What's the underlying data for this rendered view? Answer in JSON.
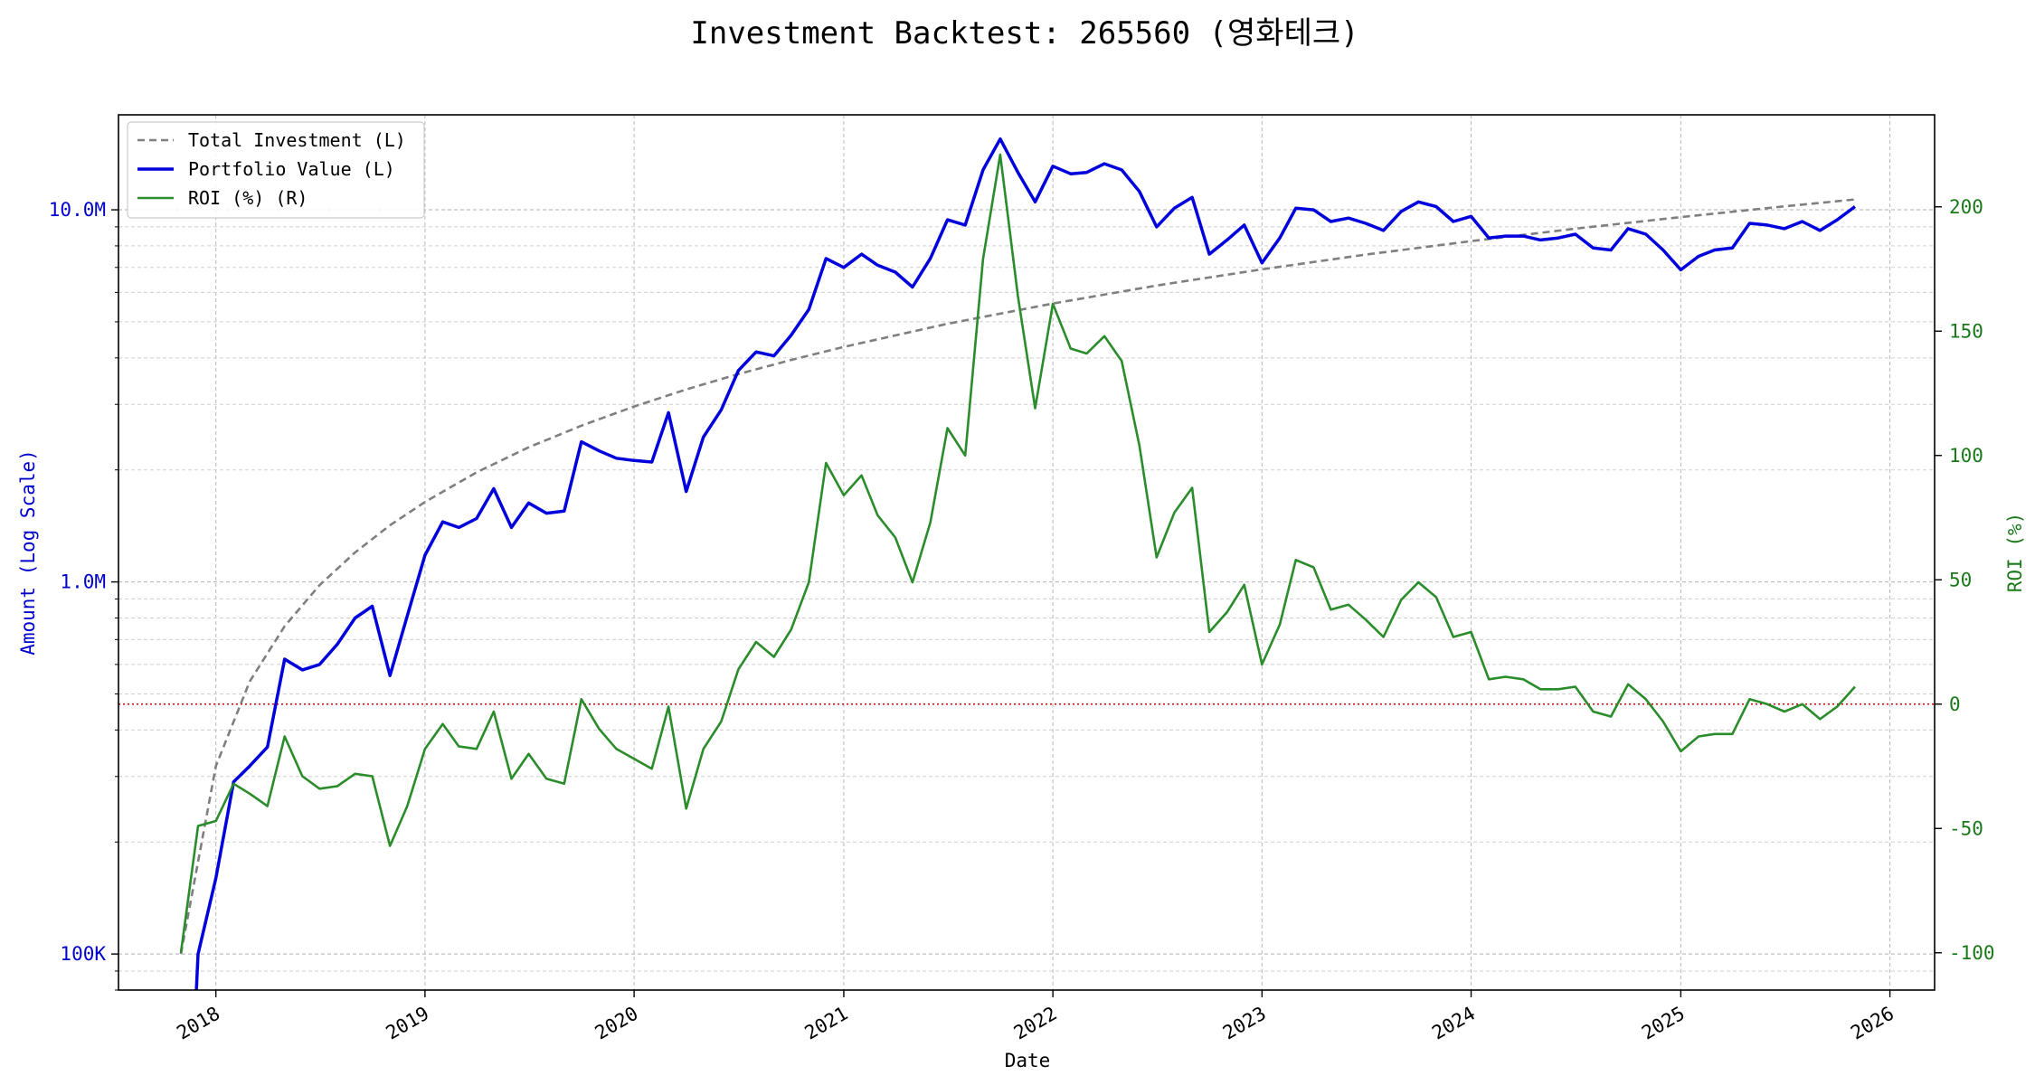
{
  "chart_data": {
    "type": "line",
    "title": "Investment Backtest: 265560 (영화테크)",
    "xlabel": "Date",
    "ylabel_left": "Amount (Log Scale)",
    "ylabel_right": "ROI (%)",
    "left_scale": "log",
    "left_ylim": [
      80000,
      18000000
    ],
    "right_ylim": [
      -115,
      237
    ],
    "x_range": [
      "2017-07-15",
      "2026-03-20"
    ],
    "x_ticks": [
      {
        "date": "2018-01-01",
        "label": "2018"
      },
      {
        "date": "2019-01-01",
        "label": "2019"
      },
      {
        "date": "2020-01-01",
        "label": "2020"
      },
      {
        "date": "2021-01-01",
        "label": "2021"
      },
      {
        "date": "2022-01-01",
        "label": "2022"
      },
      {
        "date": "2023-01-01",
        "label": "2023"
      },
      {
        "date": "2024-01-01",
        "label": "2024"
      },
      {
        "date": "2025-01-01",
        "label": "2025"
      },
      {
        "date": "2026-01-01",
        "label": "2026"
      }
    ],
    "left_ticks": [
      {
        "value": 100000,
        "label": "100K"
      },
      {
        "value": 1000000,
        "label": "1.0M"
      },
      {
        "value": 10000000,
        "label": "10.0M"
      }
    ],
    "right_ticks": [
      -100,
      -50,
      0,
      50,
      100,
      150,
      200
    ],
    "reference_line": {
      "value": 0,
      "axis": "right",
      "color": "#cc0000",
      "style": "dotted"
    },
    "grid": true,
    "legend_position": "top-left",
    "colors": {
      "investment": "#7f7f7f",
      "portfolio": "#0000dd",
      "roi": "#2a8c2a",
      "left_axis": "#0000cc",
      "right_axis": "#1a7a1a"
    },
    "series": [
      {
        "name": "Total Investment (L)",
        "axis": "left",
        "style": "dashed",
        "x": [
          "2017-11-01",
          "2018-01-01",
          "2018-03-01",
          "2018-05-01",
          "2018-07-01",
          "2018-09-01",
          "2018-11-01",
          "2019-01-01",
          "2019-04-01",
          "2019-07-01",
          "2019-10-01",
          "2020-01-01",
          "2020-04-01",
          "2020-07-01",
          "2020-10-01",
          "2021-01-01",
          "2021-07-01",
          "2022-01-01",
          "2022-07-01",
          "2023-01-01",
          "2023-07-01",
          "2024-01-01",
          "2024-07-01",
          "2025-01-01",
          "2025-07-01",
          "2025-11-01"
        ],
        "values": [
          100000,
          320000,
          540000,
          760000,
          980000,
          1200000,
          1420000,
          1640000,
          1970000,
          2300000,
          2630000,
          2960000,
          3290000,
          3620000,
          3950000,
          4280000,
          4940000,
          5600000,
          6260000,
          6920000,
          7580000,
          8240000,
          8900000,
          9560000,
          10220000,
          10660000
        ]
      },
      {
        "name": "Portfolio Value (L)",
        "axis": "left",
        "style": "solid",
        "x": [
          "2017-11-28",
          "2017-12-01",
          "2018-01-01",
          "2018-02-01",
          "2018-03-01",
          "2018-04-01",
          "2018-05-01",
          "2018-06-01",
          "2018-07-01",
          "2018-08-01",
          "2018-09-01",
          "2018-10-01",
          "2018-11-01",
          "2018-12-01",
          "2019-01-01",
          "2019-02-01",
          "2019-03-01",
          "2019-04-01",
          "2019-05-01",
          "2019-06-01",
          "2019-07-01",
          "2019-08-01",
          "2019-09-01",
          "2019-10-01",
          "2019-11-01",
          "2019-12-01",
          "2020-01-01",
          "2020-02-01",
          "2020-03-01",
          "2020-04-01",
          "2020-05-01",
          "2020-06-01",
          "2020-07-01",
          "2020-08-01",
          "2020-09-01",
          "2020-10-01",
          "2020-11-01",
          "2020-12-01",
          "2021-01-01",
          "2021-02-01",
          "2021-03-01",
          "2021-04-01",
          "2021-05-01",
          "2021-06-01",
          "2021-07-01",
          "2021-08-01",
          "2021-09-01",
          "2021-10-01",
          "2021-11-01",
          "2021-12-01",
          "2022-01-01",
          "2022-02-01",
          "2022-03-01",
          "2022-04-01",
          "2022-05-01",
          "2022-06-01",
          "2022-07-01",
          "2022-08-01",
          "2022-09-01",
          "2022-10-01",
          "2022-11-01",
          "2022-12-01",
          "2023-01-01",
          "2023-02-01",
          "2023-03-01",
          "2023-04-01",
          "2023-05-01",
          "2023-06-01",
          "2023-07-01",
          "2023-08-01",
          "2023-09-01",
          "2023-10-01",
          "2023-11-01",
          "2023-12-01",
          "2024-01-01",
          "2024-02-01",
          "2024-03-01",
          "2024-04-01",
          "2024-05-01",
          "2024-06-01",
          "2024-07-01",
          "2024-08-01",
          "2024-09-01",
          "2024-10-01",
          "2024-11-01",
          "2024-12-01",
          "2025-01-01",
          "2025-02-01",
          "2025-03-01",
          "2025-04-01",
          "2025-05-01",
          "2025-06-01",
          "2025-07-01",
          "2025-08-01",
          "2025-09-01",
          "2025-10-01",
          "2025-11-01"
        ],
        "values": [
          70000,
          100000,
          160000,
          290000,
          320000,
          360000,
          620000,
          580000,
          600000,
          680000,
          800000,
          860000,
          560000,
          810000,
          1180000,
          1450000,
          1400000,
          1480000,
          1780000,
          1400000,
          1630000,
          1530000,
          1550000,
          2380000,
          2250000,
          2150000,
          2120000,
          2100000,
          2850000,
          1750000,
          2450000,
          2900000,
          3700000,
          4150000,
          4050000,
          4600000,
          5400000,
          7400000,
          7000000,
          7600000,
          7100000,
          6800000,
          6200000,
          7400000,
          9400000,
          9100000,
          12800000,
          15500000,
          12600000,
          10500000,
          13100000,
          12500000,
          12600000,
          13300000,
          12800000,
          11200000,
          9000000,
          10100000,
          10800000,
          7600000,
          8300000,
          9100000,
          7200000,
          8400000,
          10100000,
          10000000,
          9300000,
          9500000,
          9200000,
          8800000,
          9900000,
          10500000,
          10200000,
          9300000,
          9600000,
          8400000,
          8500000,
          8500000,
          8300000,
          8400000,
          8600000,
          7900000,
          7800000,
          8900000,
          8600000,
          7800000,
          6900000,
          7500000,
          7800000,
          7900000,
          9200000,
          9100000,
          8900000,
          9300000,
          8800000,
          9400000,
          10200000
        ]
      },
      {
        "name": "ROI (%) (R)",
        "axis": "right",
        "style": "solid",
        "x": [
          "2017-11-01",
          "2017-12-01",
          "2018-01-01",
          "2018-02-01",
          "2018-03-01",
          "2018-04-01",
          "2018-05-01",
          "2018-06-01",
          "2018-07-01",
          "2018-08-01",
          "2018-09-01",
          "2018-10-01",
          "2018-11-01",
          "2018-12-01",
          "2019-01-01",
          "2019-02-01",
          "2019-03-01",
          "2019-04-01",
          "2019-05-01",
          "2019-06-01",
          "2019-07-01",
          "2019-08-01",
          "2019-09-01",
          "2019-10-01",
          "2019-11-01",
          "2019-12-01",
          "2020-01-01",
          "2020-02-01",
          "2020-03-01",
          "2020-04-01",
          "2020-05-01",
          "2020-06-01",
          "2020-07-01",
          "2020-08-01",
          "2020-09-01",
          "2020-10-01",
          "2020-11-01",
          "2020-12-01",
          "2021-01-01",
          "2021-02-01",
          "2021-03-01",
          "2021-04-01",
          "2021-05-01",
          "2021-06-01",
          "2021-07-01",
          "2021-08-01",
          "2021-09-01",
          "2021-10-01",
          "2021-11-01",
          "2021-12-01",
          "2022-01-01",
          "2022-02-01",
          "2022-03-01",
          "2022-04-01",
          "2022-05-01",
          "2022-06-01",
          "2022-07-01",
          "2022-08-01",
          "2022-09-01",
          "2022-10-01",
          "2022-11-01",
          "2022-12-01",
          "2023-01-01",
          "2023-02-01",
          "2023-03-01",
          "2023-04-01",
          "2023-05-01",
          "2023-06-01",
          "2023-07-01",
          "2023-08-01",
          "2023-09-01",
          "2023-10-01",
          "2023-11-01",
          "2023-12-01",
          "2024-01-01",
          "2024-02-01",
          "2024-03-01",
          "2024-04-01",
          "2024-05-01",
          "2024-06-01",
          "2024-07-01",
          "2024-08-01",
          "2024-09-01",
          "2024-10-01",
          "2024-11-01",
          "2024-12-01",
          "2025-01-01",
          "2025-02-01",
          "2025-03-01",
          "2025-04-01",
          "2025-05-01",
          "2025-06-01",
          "2025-07-01",
          "2025-08-01",
          "2025-09-01",
          "2025-10-01",
          "2025-11-01"
        ],
        "values": [
          -100,
          -49,
          -47,
          -32,
          -36,
          -41,
          -13,
          -29,
          -34,
          -33,
          -28,
          -29,
          -57,
          -41,
          -18,
          -8,
          -17,
          -18,
          -3,
          -30,
          -20,
          -30,
          -32,
          2,
          -10,
          -18,
          -22,
          -26,
          -1,
          -42,
          -18,
          -7,
          14,
          25,
          19,
          30,
          49,
          97,
          84,
          92,
          76,
          67,
          49,
          73,
          111,
          100,
          179,
          221,
          164,
          119,
          161,
          143,
          141,
          148,
          138,
          104,
          59,
          77,
          87,
          29,
          37,
          48,
          16,
          32,
          58,
          55,
          38,
          40,
          34,
          27,
          42,
          49,
          43,
          27,
          29,
          10,
          11,
          10,
          6,
          6,
          7,
          -3,
          -5,
          8,
          2,
          -7,
          -19,
          -13,
          -12,
          -12,
          2,
          0,
          -3,
          0,
          -6,
          -1,
          7
        ]
      }
    ]
  }
}
